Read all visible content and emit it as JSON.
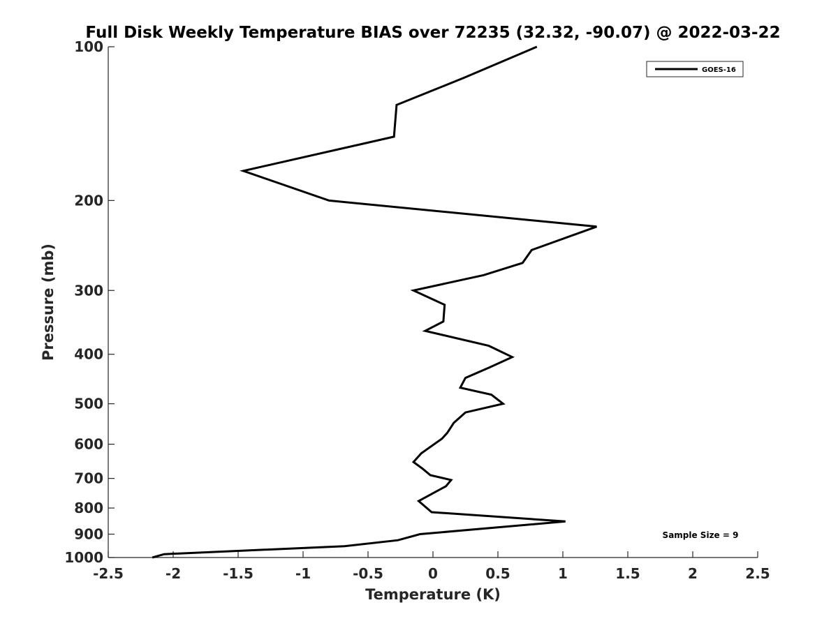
{
  "chart_data": {
    "type": "line",
    "title": "Full Disk Weekly Temperature BIAS over 72235 (32.32, -90.07) @ 2022-03-22",
    "xlabel": "Temperature (K)",
    "ylabel": "Pressure (mb)",
    "xlim": [
      -2.5,
      2.5
    ],
    "ylim": [
      100,
      1000
    ],
    "y_scale": "log",
    "y_reversed": true,
    "grid": false,
    "legend_position": "top-right",
    "x_ticks": [
      "-2.5",
      "-2",
      "-1.5",
      "-1",
      "-0.5",
      "0",
      "0.5",
      "1",
      "1.5",
      "2",
      "2.5"
    ],
    "x_tick_values": [
      -2.5,
      -2,
      -1.5,
      -1,
      -0.5,
      0,
      0.5,
      1,
      1.5,
      2,
      2.5
    ],
    "y_ticks": [
      "100",
      "200",
      "300",
      "400",
      "500",
      "600",
      "700",
      "800",
      "900",
      "1000"
    ],
    "y_tick_values": [
      100,
      200,
      300,
      400,
      500,
      600,
      700,
      800,
      900,
      1000
    ],
    "annotation": "Sample Size = 9",
    "series": [
      {
        "name": "GOES-16",
        "color": "#000000",
        "points": [
          {
            "x": 0.8,
            "p": 100
          },
          {
            "x": 0.24,
            "p": 115
          },
          {
            "x": -0.28,
            "p": 130
          },
          {
            "x": -0.3,
            "p": 150
          },
          {
            "x": -1.46,
            "p": 175
          },
          {
            "x": -0.8,
            "p": 200
          },
          {
            "x": 1.26,
            "p": 225
          },
          {
            "x": 0.76,
            "p": 250
          },
          {
            "x": 0.69,
            "p": 265
          },
          {
            "x": 0.39,
            "p": 280
          },
          {
            "x": -0.15,
            "p": 300
          },
          {
            "x": 0.09,
            "p": 320
          },
          {
            "x": 0.08,
            "p": 345
          },
          {
            "x": -0.06,
            "p": 360
          },
          {
            "x": 0.43,
            "p": 385
          },
          {
            "x": 0.61,
            "p": 405
          },
          {
            "x": 0.43,
            "p": 425
          },
          {
            "x": 0.25,
            "p": 445
          },
          {
            "x": 0.21,
            "p": 465
          },
          {
            "x": 0.45,
            "p": 480
          },
          {
            "x": 0.54,
            "p": 500
          },
          {
            "x": 0.25,
            "p": 520
          },
          {
            "x": 0.16,
            "p": 545
          },
          {
            "x": 0.11,
            "p": 570
          },
          {
            "x": 0.07,
            "p": 585
          },
          {
            "x": -0.09,
            "p": 625
          },
          {
            "x": -0.15,
            "p": 650
          },
          {
            "x": -0.08,
            "p": 670
          },
          {
            "x": -0.02,
            "p": 690
          },
          {
            "x": 0.14,
            "p": 705
          },
          {
            "x": 0.1,
            "p": 725
          },
          {
            "x": -0.11,
            "p": 775
          },
          {
            "x": -0.01,
            "p": 815
          },
          {
            "x": 1.02,
            "p": 850
          },
          {
            "x": -0.1,
            "p": 900
          },
          {
            "x": -0.27,
            "p": 925
          },
          {
            "x": -0.68,
            "p": 950
          },
          {
            "x": -2.07,
            "p": 985
          },
          {
            "x": -2.16,
            "p": 1000
          }
        ]
      }
    ]
  }
}
